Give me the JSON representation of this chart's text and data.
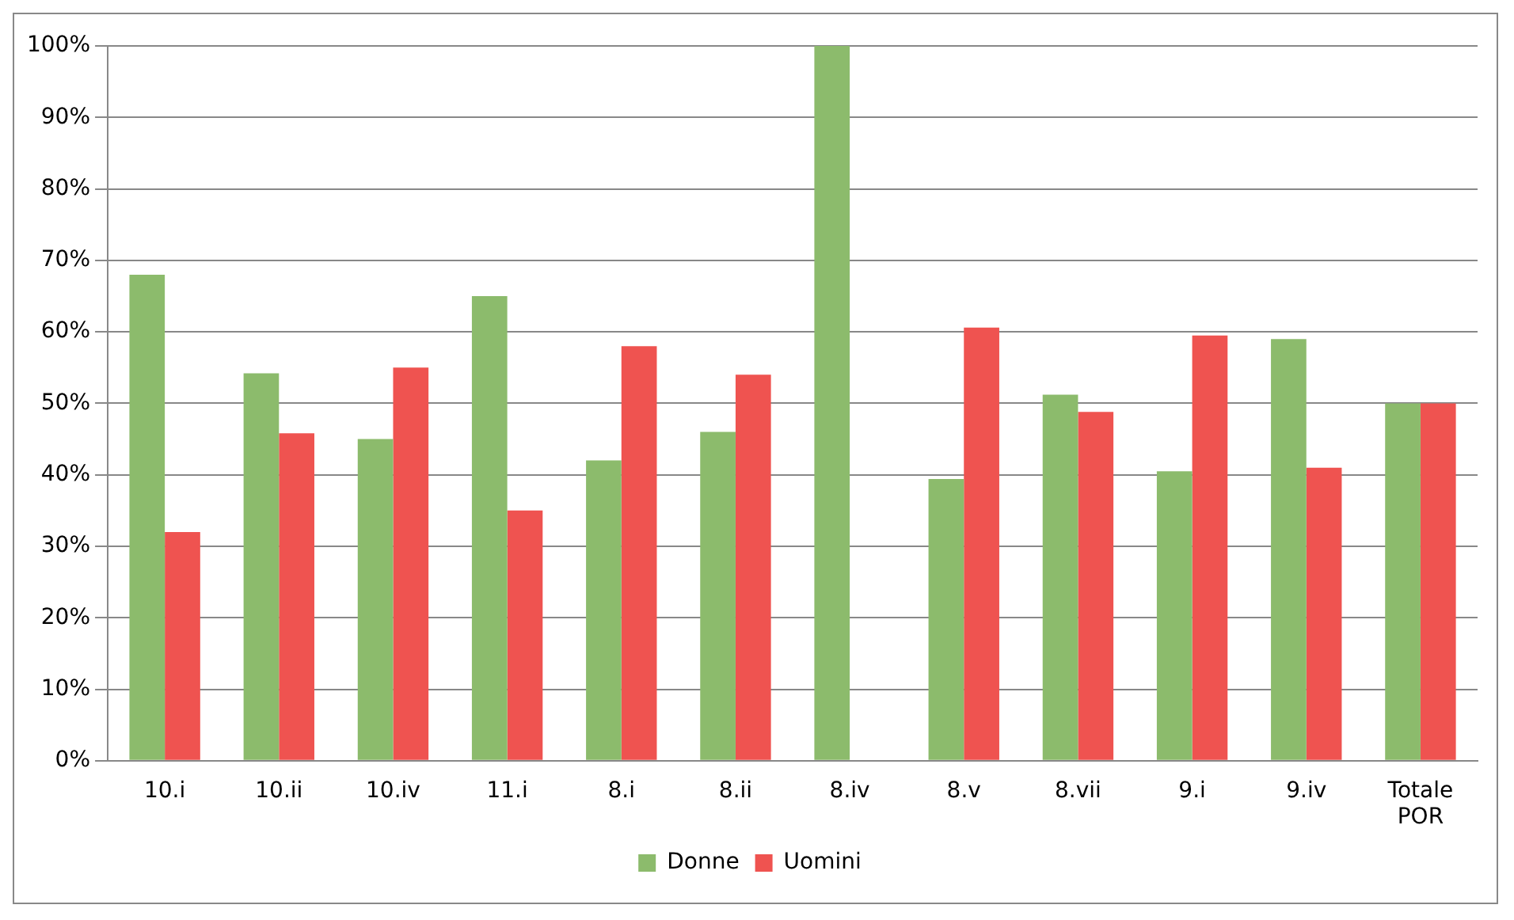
{
  "chart_data": {
    "type": "bar",
    "categories": [
      "10.i",
      "10.ii",
      "10.iv",
      "11.i",
      "8.i",
      "8.ii",
      "8.iv",
      "8.v",
      "8.vii",
      "9.i",
      "9.iv",
      "Totale POR"
    ],
    "series": [
      {
        "name": "Donne",
        "color": "#8cbb6c",
        "values": [
          68,
          54.2,
          45,
          65,
          42,
          46,
          100,
          39.4,
          51.2,
          40.5,
          59,
          50
        ]
      },
      {
        "name": "Uomini",
        "color": "#ef5350",
        "values": [
          32,
          45.8,
          55,
          35,
          58,
          54,
          0,
          60.6,
          48.8,
          59.5,
          41,
          50
        ]
      }
    ],
    "ylim": [
      0,
      100
    ],
    "yticks": [
      {
        "value": 0,
        "label": "0%"
      },
      {
        "value": 10,
        "label": "10%"
      },
      {
        "value": 20,
        "label": "20%"
      },
      {
        "value": 30,
        "label": "30%"
      },
      {
        "value": 40,
        "label": "40%"
      },
      {
        "value": 50,
        "label": "50%"
      },
      {
        "value": 60,
        "label": "60%"
      },
      {
        "value": 70,
        "label": "70%"
      },
      {
        "value": 80,
        "label": "80%"
      },
      {
        "value": 90,
        "label": "90%"
      },
      {
        "value": 100,
        "label": "100%"
      }
    ],
    "grid": "y",
    "legend": "bottom"
  }
}
